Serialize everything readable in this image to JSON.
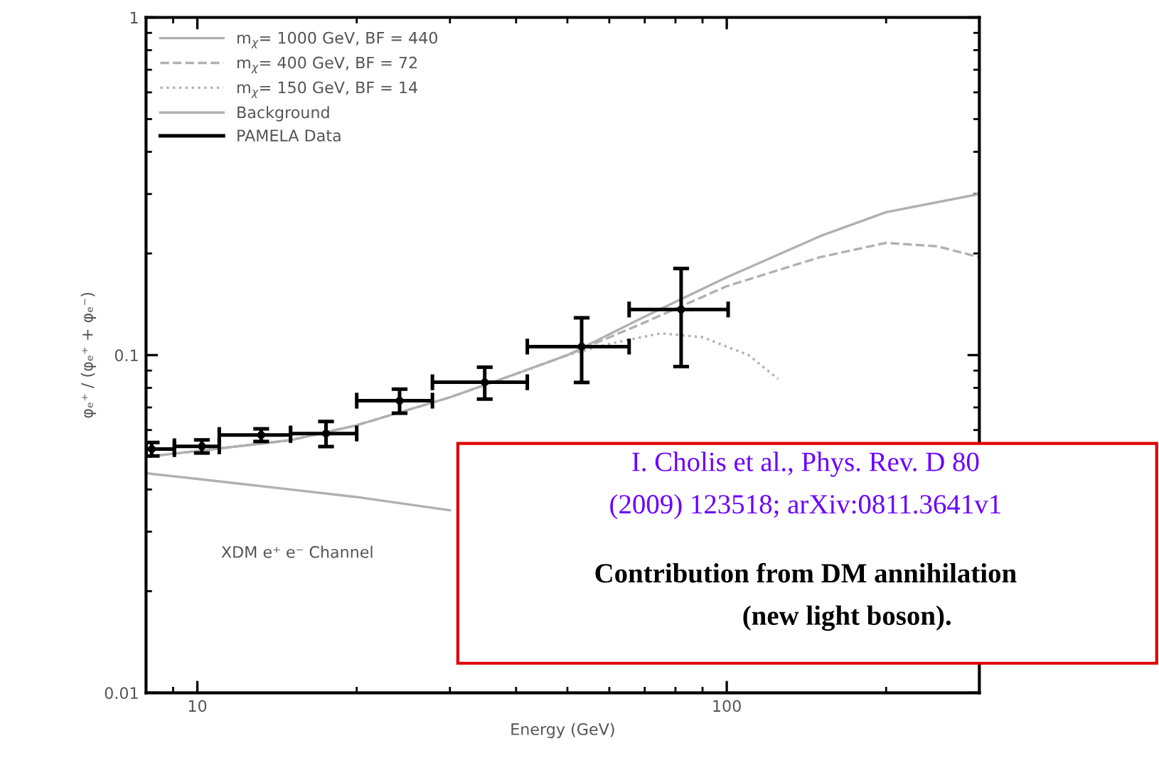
{
  "chart_data": {
    "type": "line",
    "xlabel": "Energy (GeV)",
    "ylabel": "φₑ⁺ / (φₑ⁺ + φₑ⁻)",
    "log": "xy",
    "xlim": [
      8,
      300
    ],
    "ylim": [
      0.01,
      1
    ],
    "xticks": [
      10,
      100
    ],
    "yticks": [
      0.01,
      0.1,
      1
    ],
    "grid": false,
    "legend": "top left",
    "series": [
      {
        "name": "m$_{χ}$= 1000 GeV, BF = 440",
        "color": "#b0b0b0",
        "line_style": "solid",
        "x": [
          8,
          10,
          15,
          20,
          30,
          40,
          50,
          70,
          100,
          150,
          200,
          300
        ],
        "values": [
          0.05,
          0.052,
          0.056,
          0.062,
          0.075,
          0.088,
          0.1,
          0.13,
          0.17,
          0.225,
          0.265,
          0.3
        ]
      },
      {
        "name": "m$_{χ}$= 400 GeV, BF = 72",
        "color": "#b0b0b0",
        "line_style": "dashed",
        "x": [
          8,
          10,
          15,
          20,
          30,
          40,
          50,
          70,
          100,
          150,
          200,
          250,
          300
        ],
        "values": [
          0.05,
          0.052,
          0.056,
          0.062,
          0.075,
          0.088,
          0.1,
          0.125,
          0.16,
          0.195,
          0.215,
          0.21,
          0.195
        ]
      },
      {
        "name": "m$_{χ}$= 150 GeV, BF = 14",
        "color": "#b0b0b0",
        "line_style": "dotted",
        "x": [
          8,
          10,
          15,
          20,
          30,
          40,
          50,
          60,
          75,
          90,
          110,
          125
        ],
        "values": [
          0.05,
          0.052,
          0.056,
          0.062,
          0.075,
          0.088,
          0.1,
          0.108,
          0.116,
          0.113,
          0.1,
          0.085
        ]
      },
      {
        "name": "Background",
        "color": "#b0b0b0",
        "line_style": "solid",
        "x": [
          8,
          10,
          15,
          20,
          30
        ],
        "values": [
          0.0447,
          0.043,
          0.04,
          0.038,
          0.0347
        ]
      },
      {
        "name": "PAMELA Data",
        "type": "scatter",
        "marker": "circle",
        "color": "#000000",
        "x": [
          8.2,
          10.2,
          13.2,
          17.5,
          24.1,
          34.9,
          53.2,
          82.0
        ],
        "values": [
          0.0527,
          0.0537,
          0.058,
          0.0586,
          0.0733,
          0.0831,
          0.106,
          0.1365
        ],
        "errors": [
          0.0024,
          0.0024,
          0.0025,
          0.005,
          0.006,
          0.009,
          0.023,
          0.044
        ],
        "xerrors": [
          [
            8,
            9.05
          ],
          [
            9.05,
            11.0
          ],
          [
            11.0,
            15.0
          ],
          [
            15.0,
            20.0
          ],
          [
            20.0,
            27.8
          ],
          [
            27.8,
            42.0
          ],
          [
            42.0,
            65.4
          ],
          [
            65.4,
            100.6
          ]
        ]
      }
    ],
    "annotations": [
      "XDM e⁺ e⁻ Channel",
      "I. Cholis et al., Phys. Rev. D 80\n(2009) 123518; arXiv:0811.3641v1",
      "Contribution from DM annihilation\n            (new light boson)."
    ]
  }
}
